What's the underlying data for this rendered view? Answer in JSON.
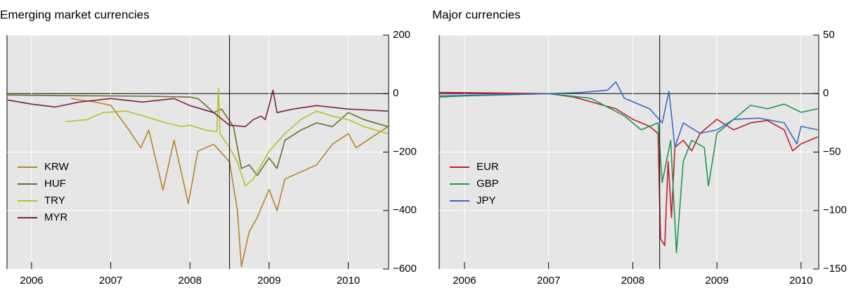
{
  "chart_data": [
    {
      "type": "line",
      "title": "Emerging market currencies",
      "xlim": [
        2005.69,
        2010.51
      ],
      "xticks": [
        {
          "value": 2006,
          "label": "2006"
        },
        {
          "value": 2007,
          "label": "2007"
        },
        {
          "value": 2008,
          "label": "2008"
        },
        {
          "value": 2009,
          "label": "2009"
        },
        {
          "value": 2010,
          "label": "2010"
        }
      ],
      "ylim": [
        -600,
        200
      ],
      "yticks": [
        200,
        0,
        {
          "value": -200,
          "label": "−200"
        },
        {
          "value": -400,
          "label": "−400"
        },
        {
          "value": -600,
          "label": "−600"
        }
      ],
      "vline": 2008.5,
      "grid": true,
      "legend": "lower left",
      "series": [
        {
          "name": "KRW",
          "color": "#b8832a",
          "x": [
            2006.5,
            2006.8,
            2007.0,
            2007.2,
            2007.38,
            2007.48,
            2007.66,
            2007.8,
            2007.98,
            2008.1,
            2008.3,
            2008.5,
            2008.6,
            2008.65,
            2008.75,
            2008.85,
            2009.0,
            2009.1,
            2009.2,
            2009.4,
            2009.6,
            2009.8,
            2010.0,
            2010.1,
            2010.3,
            2010.5
          ],
          "values": [
            -17,
            -29,
            -40,
            -113,
            -185,
            -125,
            -330,
            -160,
            -376,
            -197,
            -173,
            -233,
            -400,
            -592,
            -472,
            -424,
            -328,
            -400,
            -292,
            -268,
            -244,
            -173,
            -137,
            -185,
            -149,
            -113
          ]
        },
        {
          "name": "HUF",
          "color": "#6b6b2a",
          "x": [
            2005.7,
            2006.5,
            2007.5,
            2008.0,
            2008.1,
            2008.2,
            2008.3,
            2008.4,
            2008.55,
            2008.65,
            2008.75,
            2008.85,
            2009.0,
            2009.1,
            2009.2,
            2009.4,
            2009.6,
            2009.8,
            2010.0,
            2010.2,
            2010.5
          ],
          "values": [
            -5,
            -7,
            -9,
            -12,
            -17,
            -40,
            -65,
            -53,
            -113,
            -256,
            -244,
            -280,
            -220,
            -256,
            -160,
            -125,
            -100,
            -113,
            -65,
            -89,
            -113
          ]
        },
        {
          "name": "TRY",
          "color": "#b5c22a",
          "x": [
            2006.43,
            2006.7,
            2006.9,
            2007.2,
            2007.5,
            2007.7,
            2007.9,
            2008.0,
            2008.2,
            2008.34,
            2008.36,
            2008.38,
            2008.5,
            2008.6,
            2008.7,
            2008.8,
            2009.0,
            2009.2,
            2009.4,
            2009.6,
            2009.8,
            2010.0,
            2010.2,
            2010.5
          ],
          "values": [
            -96,
            -89,
            -65,
            -60,
            -84,
            -100,
            -113,
            -108,
            -125,
            -130,
            19,
            -137,
            -185,
            -233,
            -316,
            -292,
            -197,
            -137,
            -89,
            -60,
            -77,
            -89,
            -113,
            -137
          ]
        },
        {
          "name": "MYR",
          "color": "#7a1f48",
          "x": [
            2005.7,
            2006.0,
            2006.3,
            2006.6,
            2007.0,
            2007.4,
            2007.8,
            2008.0,
            2008.3,
            2008.5,
            2008.7,
            2008.8,
            2008.9,
            2008.95,
            2009.0,
            2009.05,
            2009.1,
            2009.3,
            2009.6,
            2010.0,
            2010.5
          ],
          "values": [
            -22,
            -36,
            -46,
            -29,
            -17,
            -29,
            -17,
            -41,
            -65,
            -108,
            -113,
            -89,
            -77,
            -89,
            -41,
            12,
            -65,
            -53,
            -41,
            -53,
            -60
          ]
        }
      ]
    },
    {
      "type": "line",
      "title": "Major currencies",
      "xlim": [
        2005.7,
        2010.21
      ],
      "xticks": [
        {
          "value": 2006,
          "label": "2006"
        },
        {
          "value": 2007,
          "label": "2007"
        },
        {
          "value": 2008,
          "label": "2008"
        },
        {
          "value": 2009,
          "label": "2009"
        },
        {
          "value": 2010,
          "label": "2010"
        }
      ],
      "ylim": [
        -150,
        50
      ],
      "yticks": [
        50,
        0,
        {
          "value": -50,
          "label": "−50"
        },
        {
          "value": -100,
          "label": "−100"
        },
        {
          "value": -150,
          "label": "−150"
        }
      ],
      "vline": 2008.32,
      "grid": true,
      "legend": "lower left",
      "series": [
        {
          "name": "EUR",
          "color": "#c0202a",
          "x": [
            2005.7,
            2007.0,
            2007.3,
            2007.5,
            2007.8,
            2008.0,
            2008.2,
            2008.3,
            2008.33,
            2008.38,
            2008.42,
            2008.46,
            2008.5,
            2008.6,
            2008.7,
            2008.8,
            2009.0,
            2009.2,
            2009.4,
            2009.6,
            2009.8,
            2009.9,
            2010.0,
            2010.2
          ],
          "values": [
            1,
            0,
            -3,
            -7,
            -13,
            -22,
            -28,
            -34,
            -124,
            -130,
            -58,
            -106,
            -46,
            -40,
            -49,
            -34,
            -22,
            -31,
            -25,
            -23,
            -31,
            -49,
            -43,
            -37
          ]
        },
        {
          "name": "GBP",
          "color": "#1a9a50",
          "x": [
            2005.7,
            2006.0,
            2007.0,
            2007.5,
            2007.9,
            2008.1,
            2008.3,
            2008.35,
            2008.45,
            2008.52,
            2008.6,
            2008.7,
            2008.85,
            2008.9,
            2009.0,
            2009.2,
            2009.4,
            2009.6,
            2009.8,
            2010.0,
            2010.2
          ],
          "values": [
            -3,
            -2,
            0,
            -4,
            -19,
            -31,
            -25,
            -76,
            -40,
            -136,
            -58,
            -40,
            -46,
            -79,
            -34,
            -22,
            -10,
            -13,
            -9,
            -16,
            -13
          ]
        },
        {
          "name": "JPY",
          "color": "#3a6ac0",
          "x": [
            2005.7,
            2007.0,
            2007.4,
            2007.7,
            2007.8,
            2007.9,
            2008.0,
            2008.2,
            2008.35,
            2008.43,
            2008.5,
            2008.6,
            2008.8,
            2009.0,
            2009.2,
            2009.5,
            2009.8,
            2009.95,
            2010.0,
            2010.2
          ],
          "values": [
            -2,
            0,
            1,
            3,
            10,
            -4,
            -7,
            -13,
            -25,
            2,
            -46,
            -25,
            -34,
            -31,
            -22,
            -21,
            -25,
            -43,
            -28,
            -31
          ]
        }
      ]
    }
  ]
}
